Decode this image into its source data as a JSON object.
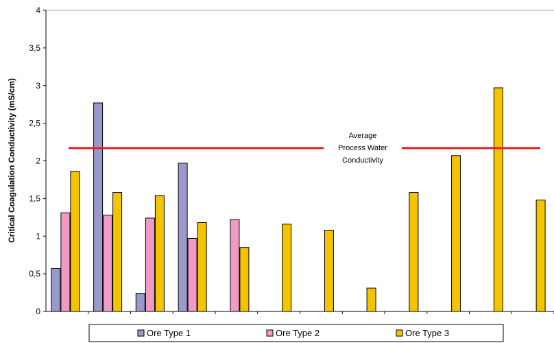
{
  "chart_data": {
    "type": "bar",
    "title": "",
    "xlabel": "",
    "ylabel": "Critical Coagulation Conductivity (mS/cm)",
    "ylim": [
      0,
      4
    ],
    "yticks": [
      "0",
      "0,5",
      "1",
      "1,5",
      "2",
      "2,5",
      "3",
      "3,5",
      "4"
    ],
    "categories": [
      "",
      "",
      "",
      "",
      "",
      "",
      "",
      "",
      "",
      "",
      "",
      ""
    ],
    "series": [
      {
        "name": "Ore Type 1",
        "color": "#9999cc",
        "values": [
          0.57,
          2.77,
          0.24,
          1.97,
          null,
          null,
          null,
          null,
          null,
          null,
          null,
          null
        ]
      },
      {
        "name": "Ore Type 2",
        "color": "#f09ac6",
        "values": [
          1.31,
          1.28,
          1.24,
          0.97,
          1.22,
          null,
          null,
          null,
          null,
          null,
          null,
          null
        ]
      },
      {
        "name": "Ore Type 3",
        "color": "#f5c400",
        "values": [
          1.86,
          1.58,
          1.54,
          1.18,
          0.85,
          1.16,
          1.08,
          0.31,
          1.58,
          2.07,
          2.97,
          1.48
        ]
      }
    ],
    "reference_line": {
      "value": 2.17,
      "color": "#ee1c1c",
      "label": [
        "Average",
        "Process Water",
        "Conductivity"
      ]
    },
    "grid": false,
    "legend": "bottom"
  }
}
